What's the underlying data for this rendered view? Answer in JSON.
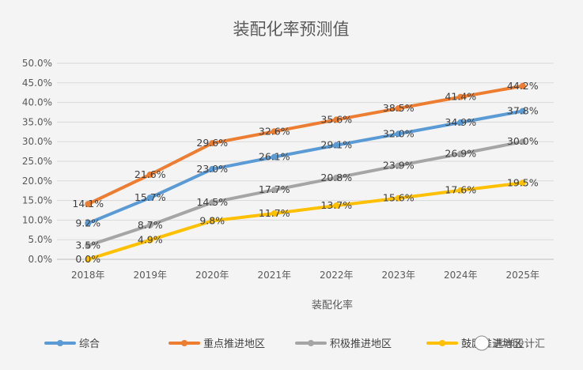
{
  "chart_data": {
    "type": "line",
    "title": "装配化率预测值",
    "xlabel": "装配化率",
    "ylabel": "",
    "categories": [
      "2018年",
      "2019年",
      "2020年",
      "2021年",
      "2022年",
      "2023年",
      "2024年",
      "2025年"
    ],
    "ylim": [
      0,
      50
    ],
    "y_ticks": [
      "0.0%",
      "5.0%",
      "10.0%",
      "15.0%",
      "20.0%",
      "25.0%",
      "30.0%",
      "35.0%",
      "40.0%",
      "45.0%",
      "50.0%"
    ],
    "grid": true,
    "legend_position": "bottom",
    "series": [
      {
        "name": "综合",
        "color": "#5b9bd5",
        "values": [
          9.2,
          15.7,
          23.0,
          26.1,
          29.1,
          32.0,
          34.9,
          37.8
        ],
        "labels": [
          "9.2%",
          "15.7%",
          "23.0%",
          "26.1%",
          "29.1%",
          "32.0%",
          "34.9%",
          "37.8%"
        ]
      },
      {
        "name": "重点推进地区",
        "color": "#ed7d31",
        "values": [
          14.1,
          21.6,
          29.6,
          32.6,
          35.6,
          38.5,
          41.4,
          44.2
        ],
        "labels": [
          "14.1%",
          "21.6%",
          "29.6%",
          "32.6%",
          "35.6%",
          "38.5%",
          "41.4%",
          "44.2%"
        ]
      },
      {
        "name": "积极推进地区",
        "color": "#a5a5a5",
        "values": [
          3.5,
          8.7,
          14.5,
          17.7,
          20.8,
          23.9,
          26.9,
          30.0
        ],
        "labels": [
          "3.5%",
          "8.7%",
          "14.5%",
          "17.7%",
          "20.8%",
          "23.9%",
          "26.9%",
          "30.0%"
        ]
      },
      {
        "name": "鼓励推进地区",
        "color": "#ffc000",
        "values": [
          0.0,
          4.9,
          9.8,
          11.7,
          13.7,
          15.6,
          17.6,
          19.5
        ],
        "labels": [
          "0.0%",
          "4.9%",
          "9.8%",
          "11.7%",
          "13.7%",
          "15.6%",
          "17.6%",
          "19.5%"
        ]
      }
    ]
  },
  "watermark": "远洋设计汇"
}
